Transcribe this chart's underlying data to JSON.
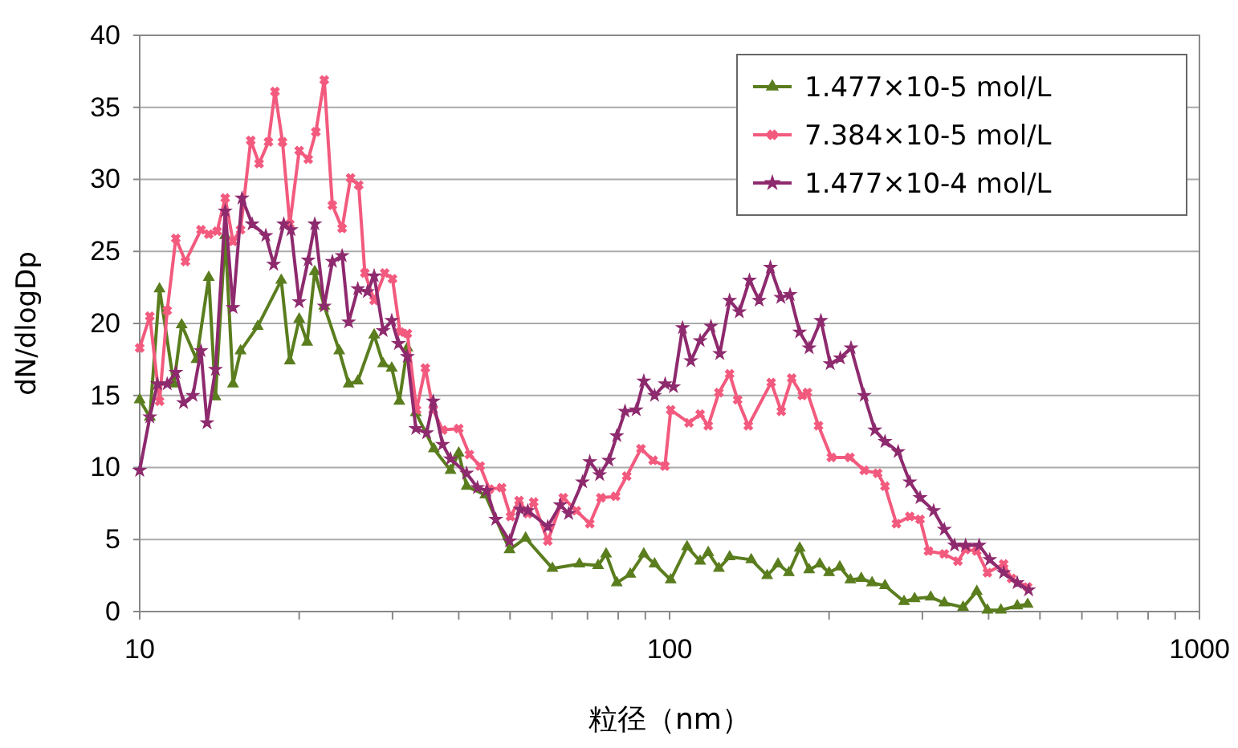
{
  "chart_data": {
    "type": "line",
    "xlabel": "粒径（nm）",
    "ylabel": "dN/dlogDp",
    "log": "x",
    "xlim": [
      10,
      1000
    ],
    "ylim": [
      0,
      40
    ],
    "xticks": [
      10,
      {
        "value": 20,
        "label": null
      },
      {
        "value": 30,
        "label": null
      },
      {
        "value": 40,
        "label": null
      },
      {
        "value": 50,
        "label": null
      },
      {
        "value": 60,
        "label": null
      },
      {
        "value": 70,
        "label": null
      },
      {
        "value": 80,
        "label": null
      },
      {
        "value": 90,
        "label": null
      },
      100,
      {
        "value": 200,
        "label": null
      },
      {
        "value": 300,
        "label": null
      },
      {
        "value": 400,
        "label": null
      },
      {
        "value": 500,
        "label": null
      },
      {
        "value": 600,
        "label": null
      },
      {
        "value": 700,
        "label": null
      },
      {
        "value": 800,
        "label": null
      },
      {
        "value": 900,
        "label": null
      },
      1000
    ],
    "yticks": [
      0,
      5,
      10,
      15,
      20,
      25,
      30,
      35,
      40
    ],
    "grid": "y",
    "legend": "top right",
    "line_style": "solid",
    "series": [
      {
        "name": "1.477×10-5 mol/L",
        "color": "#5a7d1e",
        "marker": "triangle",
        "x": [
          10.0,
          10.45,
          10.9,
          11.6,
          12.0,
          12.8,
          13.5,
          13.9,
          14.5,
          15.0,
          15.5,
          16.7,
          18.5,
          19.2,
          20.0,
          20.7,
          21.4,
          22.3,
          23.8,
          24.8,
          25.8,
          27.7,
          28.8,
          29.9,
          30.9,
          32.0,
          33.2,
          35.9,
          38.6,
          40.0,
          41.4,
          44.9,
          49.9,
          53.5,
          60.1,
          67.6,
          73.3,
          75.9,
          79.5,
          84.3,
          89.4,
          93.7,
          100.5,
          107.9,
          114.2,
          118.3,
          123.9,
          129.8,
          142.6,
          152.8,
          160.2,
          167.9,
          176,
          183.4,
          192.1,
          200,
          209.5,
          219.4,
          230,
          241,
          255,
          277,
          290,
          311,
          330,
          358,
          380,
          398,
          422,
          453,
          474
        ],
        "values": [
          14.7,
          13.5,
          22.4,
          15.8,
          19.9,
          17.5,
          23.2,
          14.9,
          26.1,
          15.8,
          18.1,
          19.8,
          23.0,
          17.4,
          20.3,
          18.7,
          23.6,
          21.2,
          18.1,
          15.8,
          16.0,
          19.2,
          17.2,
          16.9,
          14.6,
          18.3,
          13.8,
          11.3,
          9.8,
          11.0,
          8.7,
          8.1,
          4.3,
          5.1,
          3.0,
          3.3,
          3.2,
          4.0,
          2.0,
          2.6,
          4.0,
          3.3,
          2.2,
          4.5,
          3.5,
          4.1,
          3.0,
          3.8,
          3.6,
          2.5,
          3.3,
          2.7,
          4.4,
          2.9,
          3.3,
          2.7,
          3.1,
          2.2,
          2.3,
          2.0,
          1.8,
          0.7,
          0.9,
          1.0,
          0.6,
          0.3,
          1.4,
          0.1,
          0.1,
          0.4,
          0.5
        ]
      },
      {
        "name": "7.384×10-5 mol/L",
        "color": "#f25a7e",
        "marker": "cross",
        "x": [
          10.0,
          10.45,
          10.9,
          11.27,
          11.7,
          12.2,
          13.05,
          13.5,
          14.0,
          14.5,
          15.0,
          15.5,
          16.2,
          16.8,
          17.5,
          18.0,
          18.6,
          19.2,
          20.0,
          20.8,
          21.5,
          22.3,
          23.1,
          24.1,
          25.0,
          25.9,
          26.6,
          27.7,
          29.0,
          30.0,
          31.0,
          32.0,
          33.3,
          34.6,
          35.8,
          37.3,
          40.0,
          41.9,
          43.9,
          45.7,
          48.2,
          50.1,
          52.0,
          54.0,
          55.4,
          58.9,
          63.0,
          66.7,
          70.7,
          74.2,
          79.1,
          83.0,
          88.3,
          93.1,
          98.0,
          100.5,
          108.8,
          114.2,
          118.3,
          123.9,
          129.8,
          134.4,
          140.8,
          155.5,
          162.5,
          170,
          178,
          182,
          191,
          202,
          219,
          233,
          247,
          255,
          268,
          284,
          297,
          308,
          330,
          350,
          362,
          380,
          398,
          427,
          442,
          474
        ],
        "values": [
          18.3,
          20.5,
          14.6,
          20.9,
          25.9,
          24.3,
          26.5,
          26.2,
          26.4,
          28.7,
          25.7,
          26.5,
          32.7,
          31.1,
          32.6,
          36.1,
          32.6,
          26.9,
          32.0,
          31.4,
          33.3,
          36.9,
          28.2,
          26.6,
          30.1,
          29.6,
          23.5,
          21.6,
          23.5,
          23.1,
          19.4,
          19.3,
          14.0,
          16.9,
          14.0,
          12.6,
          12.7,
          10.9,
          10.1,
          8.5,
          8.6,
          6.6,
          7.7,
          6.8,
          7.6,
          4.9,
          7.9,
          7.0,
          6.1,
          7.9,
          8.0,
          9.4,
          11.3,
          10.5,
          10.1,
          14.0,
          13.1,
          13.7,
          12.9,
          15.2,
          16.5,
          14.7,
          12.9,
          15.9,
          13.9,
          16.2,
          15.0,
          15.2,
          12.9,
          10.7,
          10.7,
          9.8,
          9.6,
          8.7,
          6.1,
          6.6,
          6.4,
          4.2,
          4.0,
          3.5,
          4.3,
          4.2,
          2.7,
          3.3,
          2.3,
          1.7
        ]
      },
      {
        "name": "1.477×10-4 mol/L",
        "color": "#8e2a6e",
        "marker": "star",
        "x": [
          10.0,
          10.45,
          10.8,
          11.27,
          11.7,
          12.1,
          12.6,
          13.05,
          13.4,
          13.9,
          14.5,
          15.0,
          15.6,
          16.3,
          17.3,
          17.9,
          18.7,
          19.3,
          20.0,
          20.8,
          21.4,
          22.3,
          23.1,
          24.1,
          24.8,
          25.8,
          26.9,
          27.7,
          28.8,
          29.9,
          30.8,
          32.0,
          33.2,
          34.8,
          35.8,
          37.3,
          38.6,
          41.4,
          43.4,
          45.2,
          47.0,
          49.9,
          52.2,
          54.0,
          58.9,
          62.2,
          64.5,
          68.5,
          70.7,
          73.8,
          76.8,
          79.5,
          82.4,
          86.5,
          89.4,
          93.7,
          98.1,
          101.7,
          105.8,
          109.7,
          114.2,
          119.7,
          124.4,
          129.8,
          135.4,
          141.5,
          147.6,
          155.0,
          162.2,
          168.8,
          176,
          183.4,
          193,
          201,
          210,
          220,
          233,
          244,
          255,
          270,
          284,
          297,
          315,
          330,
          345,
          362,
          384,
          402,
          427,
          453,
          476
        ],
        "values": [
          9.8,
          13.5,
          15.8,
          15.8,
          16.6,
          14.5,
          15.0,
          18.1,
          13.1,
          16.8,
          27.8,
          21.1,
          28.7,
          26.9,
          26.1,
          24.1,
          26.9,
          26.5,
          21.5,
          24.4,
          26.9,
          21.2,
          24.3,
          24.7,
          20.1,
          22.4,
          22.2,
          23.3,
          19.5,
          20.2,
          18.6,
          17.7,
          12.7,
          12.4,
          14.6,
          11.6,
          10.6,
          9.6,
          8.6,
          8.4,
          6.4,
          4.9,
          7.1,
          7.0,
          5.9,
          7.4,
          6.8,
          9.0,
          10.4,
          9.5,
          10.5,
          12.2,
          13.9,
          14.0,
          16.0,
          15.0,
          15.8,
          15.6,
          19.7,
          17.4,
          18.8,
          19.8,
          17.9,
          21.6,
          20.8,
          23.0,
          21.6,
          23.9,
          21.8,
          22.0,
          19.4,
          18.3,
          20.2,
          17.2,
          17.6,
          18.3,
          15.0,
          12.6,
          11.8,
          11.1,
          9.0,
          7.9,
          7.0,
          5.7,
          4.6,
          4.6,
          4.6,
          3.6,
          2.7,
          2.0,
          1.5
        ]
      }
    ]
  }
}
